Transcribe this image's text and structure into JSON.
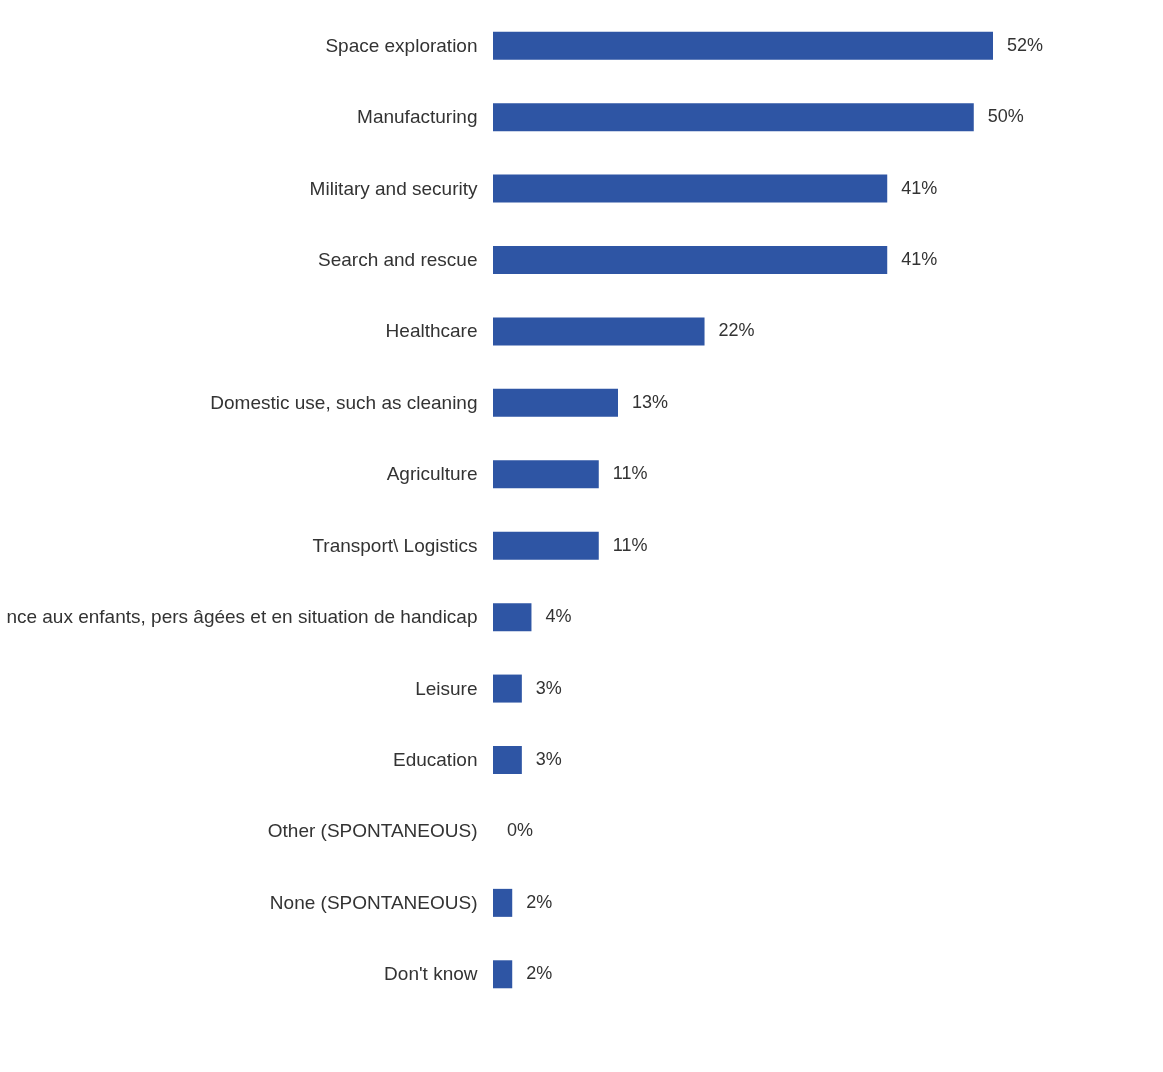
{
  "chart_data": {
    "type": "bar",
    "orientation": "horizontal",
    "categories": [
      "Space exploration",
      "Manufacturing",
      "Military and security",
      "Search and rescue",
      "Healthcare",
      "Domestic use, such as cleaning",
      "Agriculture",
      "Transport\\ Logistics",
      "nce aux enfants, pers âgées et en situation de handicap",
      "Leisure",
      "Education",
      "Other (SPONTANEOUS)",
      "None (SPONTANEOUS)",
      "Don't know"
    ],
    "values": [
      52,
      50,
      41,
      41,
      22,
      13,
      11,
      11,
      4,
      3,
      3,
      0,
      2,
      2
    ],
    "value_labels": [
      "52%",
      "50%",
      "41%",
      "41%",
      "22%",
      "13%",
      "11%",
      "11%",
      "4%",
      "3%",
      "3%",
      "0%",
      "2%",
      "2%"
    ],
    "color": "#2e55a4",
    "grid": false
  }
}
